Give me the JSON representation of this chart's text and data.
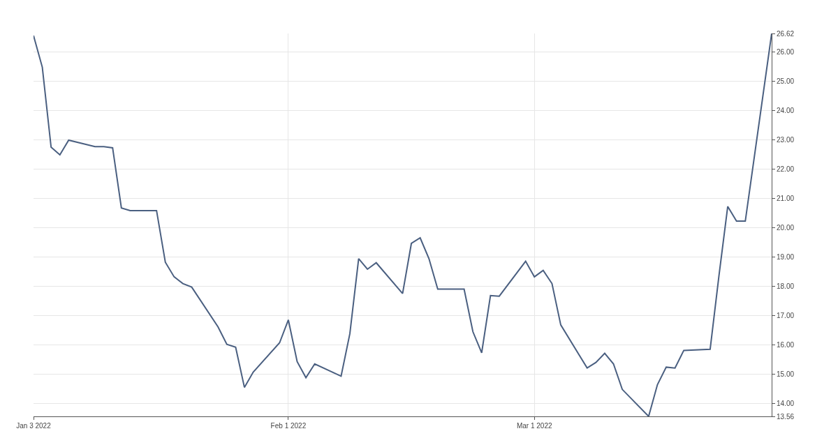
{
  "chart_data": {
    "type": "line",
    "x": [
      "2022-01-03",
      "2022-01-04",
      "2022-01-05",
      "2022-01-06",
      "2022-01-07",
      "2022-01-10",
      "2022-01-11",
      "2022-01-12",
      "2022-01-13",
      "2022-01-14",
      "2022-01-17",
      "2022-01-18",
      "2022-01-19",
      "2022-01-20",
      "2022-01-21",
      "2022-01-24",
      "2022-01-25",
      "2022-01-26",
      "2022-01-27",
      "2022-01-28",
      "2022-01-31",
      "2022-02-01",
      "2022-02-02",
      "2022-02-03",
      "2022-02-04",
      "2022-02-07",
      "2022-02-08",
      "2022-02-09",
      "2022-02-10",
      "2022-02-11",
      "2022-02-14",
      "2022-02-15",
      "2022-02-16",
      "2022-02-17",
      "2022-02-18",
      "2022-02-21",
      "2022-02-22",
      "2022-02-23",
      "2022-02-24",
      "2022-02-25",
      "2022-02-28",
      "2022-03-01",
      "2022-03-02",
      "2022-03-03",
      "2022-03-04",
      "2022-03-07",
      "2022-03-08",
      "2022-03-09",
      "2022-03-10",
      "2022-03-11",
      "2022-03-14",
      "2022-03-15",
      "2022-03-16",
      "2022-03-17",
      "2022-03-18",
      "2022-03-21",
      "2022-03-22",
      "2022-03-23",
      "2022-03-24",
      "2022-03-25",
      "2022-03-28"
    ],
    "series": [
      {
        "color": "#4a5f80",
        "values": [
          26.55,
          25.47,
          22.74,
          22.48,
          22.98,
          22.76,
          22.76,
          22.72,
          20.67,
          20.58,
          20.58,
          18.82,
          18.32,
          18.09,
          17.97,
          16.61,
          16.02,
          15.92,
          14.55,
          15.07,
          16.07,
          16.85,
          15.43,
          14.88,
          15.35,
          14.93,
          16.38,
          18.94,
          18.58,
          18.8,
          17.75,
          19.46,
          19.65,
          18.94,
          17.9,
          17.9,
          16.45,
          15.73,
          17.68,
          17.66,
          18.85,
          18.32,
          18.54,
          18.09,
          16.68,
          15.21,
          15.4,
          15.71,
          15.35,
          14.48,
          13.56,
          14.64,
          15.24,
          15.21,
          15.81,
          15.85,
          18.35,
          20.72,
          20.22,
          20.22,
          26.62
        ]
      }
    ],
    "xlim": [
      "2022-01-03",
      "2022-03-28"
    ],
    "xticks": [
      {
        "value": "2022-01-03",
        "label": "Jan 3 2022"
      },
      {
        "value": "2022-02-01",
        "label": "Feb 1 2022"
      },
      {
        "value": "2022-03-01",
        "label": "Mar 1 2022"
      }
    ],
    "ylim": [
      13.56,
      26.62
    ],
    "yticks": [
      {
        "value": 13.56,
        "label": "13.56"
      },
      {
        "value": 14,
        "label": "14.00"
      },
      {
        "value": 15,
        "label": "15.00"
      },
      {
        "value": 16,
        "label": "16.00"
      },
      {
        "value": 17,
        "label": "17.00"
      },
      {
        "value": 18,
        "label": "18.00"
      },
      {
        "value": 19,
        "label": "19.00"
      },
      {
        "value": 20,
        "label": "20.00"
      },
      {
        "value": 21,
        "label": "21.00"
      },
      {
        "value": 22,
        "label": "22.00"
      },
      {
        "value": 23,
        "label": "23.00"
      },
      {
        "value": 24,
        "label": "24.00"
      },
      {
        "value": 25,
        "label": "25.00"
      },
      {
        "value": 26,
        "label": "26.00"
      },
      {
        "value": 26.62,
        "label": "26.62"
      }
    ],
    "grid": true,
    "marker": "none",
    "line_style": "solid"
  }
}
